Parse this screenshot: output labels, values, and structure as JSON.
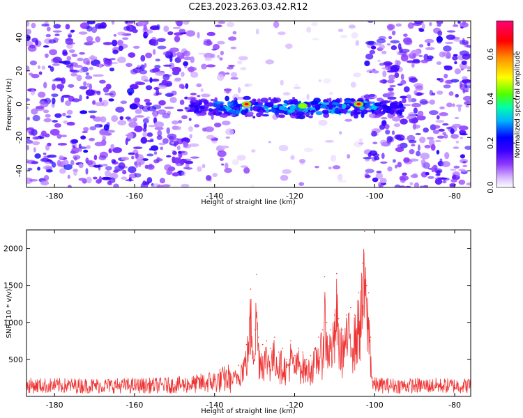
{
  "figure": {
    "title": "C2E3.2023.263.03.42.R12"
  },
  "chart_data": [
    {
      "type": "heatmap",
      "panel": "top",
      "title": "C2E3.2023.263.03.42.R12",
      "xlabel": "Height of straight line (km)",
      "ylabel": "Frequency (Hz)",
      "xlim": [
        -187,
        -76
      ],
      "ylim": [
        -50,
        50
      ],
      "xticks": [
        -180,
        -160,
        -140,
        -120,
        -100,
        -80
      ],
      "yticks": [
        -40,
        -20,
        0,
        20,
        40
      ],
      "colorbar": {
        "label": "Normalized spectral amplitude",
        "range": [
          0,
          0.75
        ],
        "ticks": [
          0.0,
          0.2,
          0.4,
          0.6
        ],
        "colormap": [
          "#ffffff",
          "#d7b6ff",
          "#8d38ff",
          "#5a00ff",
          "#0000ff",
          "#00c8ff",
          "#00ff7f",
          "#8cff00",
          "#ffff00",
          "#ff8c00",
          "#ff0000",
          "#ff0088"
        ]
      },
      "noise_regions": [
        {
          "x": [
            -187,
            -146
          ],
          "level": "high"
        },
        {
          "x": [
            -146,
            -135
          ],
          "level": "medium"
        },
        {
          "x": [
            -135,
            -102
          ],
          "level": "low"
        },
        {
          "x": [
            -102,
            -76
          ],
          "level": "high"
        }
      ],
      "signal_band": {
        "x": [
          -146,
          -93
        ],
        "center_frequency_hz": -2,
        "width_hz": 8,
        "peaks": [
          {
            "x": -132,
            "y": 0,
            "amplitude": 0.7
          },
          {
            "x": -104,
            "y": 0,
            "amplitude": 0.72
          },
          {
            "x": -118,
            "y": -1,
            "amplitude": 0.45
          }
        ]
      },
      "grid": false
    },
    {
      "type": "line",
      "panel": "bottom",
      "xlabel": "Height of straight line (km)",
      "ylabel": "SNR (10 * v/v)",
      "xlim": [
        -187,
        -76
      ],
      "ylim": [
        0,
        2250
      ],
      "xticks": [
        -180,
        -160,
        -140,
        -120,
        -100,
        -80
      ],
      "yticks": [
        500,
        1000,
        1500,
        2000
      ],
      "color": "#ee3333",
      "grid": false,
      "series": [
        {
          "x": [
            -187,
            -180,
            -170,
            -160,
            -150,
            -145,
            -140,
            -136,
            -134,
            -132,
            -131,
            -130,
            -129.5,
            -129,
            -128,
            -127,
            -126,
            -125,
            -124,
            -123,
            -122,
            -121,
            -120,
            -119,
            -118,
            -117,
            -116,
            -115,
            -114,
            -113,
            -112.5,
            -112,
            -111,
            -110,
            -109.5,
            -109,
            -108,
            -107,
            -106,
            -105,
            -104,
            -103,
            -102.5,
            -102,
            -101.5,
            -101,
            -100.5,
            -100,
            -95,
            -90,
            -85,
            -80,
            -76
          ],
          "y": [
            150,
            150,
            150,
            150,
            160,
            180,
            230,
            300,
            420,
            700,
            1450,
            900,
            1650,
            800,
            700,
            750,
            650,
            800,
            600,
            650,
            500,
            750,
            550,
            650,
            600,
            500,
            550,
            650,
            800,
            900,
            1620,
            1000,
            900,
            1100,
            1660,
            1050,
            900,
            1100,
            1200,
            1100,
            1400,
            1800,
            2230,
            1500,
            1400,
            800,
            200,
            160,
            150,
            150,
            150,
            150,
            150
          ]
        }
      ]
    }
  ]
}
